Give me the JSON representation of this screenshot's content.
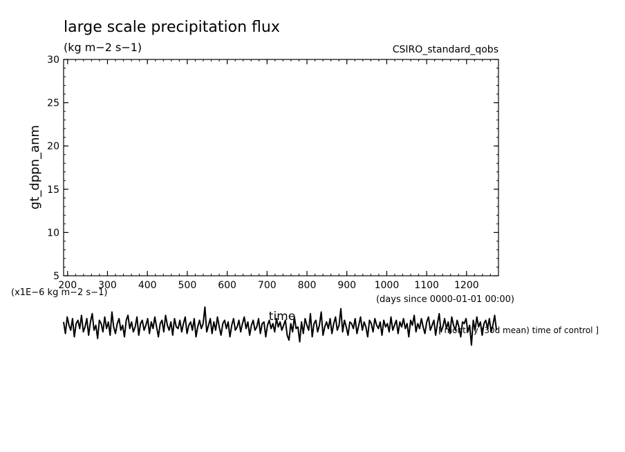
{
  "chart_data": {
    "type": "line",
    "title": "large scale precipitation flux",
    "units": "(kg m−2 s−1)",
    "source_label": "CSIRO_standard_qobs",
    "ylabel": "gt_dppn_anm",
    "xlabel": "time",
    "x_units": "(days since 0000-01-01 00:00)",
    "y_scale_label": "(x1E−6 kg m−2 s−1)",
    "extra_note": "[ monthly (30d mean) time of control ]",
    "xlim": [
      190,
      1280
    ],
    "ylim": [
      5,
      30
    ],
    "x_ticks": [
      "200",
      "300",
      "400",
      "500",
      "600",
      "700",
      "800",
      "900",
      "1000",
      "1100",
      "1200"
    ],
    "y_ticks": [
      "30",
      "25",
      "20",
      "15",
      "10",
      "5"
    ],
    "grid": false,
    "series": [
      {
        "x_start": 190,
        "x_end": 1275,
        "values": [
          0.3,
          -0.4,
          0.6,
          0.1,
          -0.2,
          0.5,
          -0.6,
          0.2,
          0.4,
          -0.1,
          0.7,
          -0.3,
          0.0,
          0.5,
          -0.5,
          0.3,
          0.8,
          -0.2,
          0.1,
          -0.7,
          0.4,
          0.2,
          -0.3,
          0.6,
          -0.1,
          0.3,
          -0.5,
          0.9,
          0.0,
          -0.4,
          0.2,
          0.5,
          -0.2,
          0.1,
          -0.6,
          0.4,
          0.7,
          -0.1,
          0.3,
          -0.3,
          0.0,
          0.6,
          -0.5,
          0.2,
          0.4,
          -0.2,
          0.1,
          0.5,
          -0.4,
          0.3,
          -0.1,
          0.6,
          0.0,
          -0.6,
          0.2,
          0.4,
          -0.3,
          0.7,
          0.1,
          -0.2,
          0.3,
          -0.5,
          0.5,
          0.0,
          -0.1,
          0.4,
          -0.3,
          0.2,
          0.6,
          -0.4,
          0.1,
          0.3,
          -0.2,
          0.5,
          -0.6,
          0.0,
          0.4,
          -0.1,
          0.2,
          1.2,
          -0.3,
          0.1,
          0.5,
          -0.4,
          0.3,
          -0.2,
          0.6,
          0.0,
          -0.5,
          0.2,
          0.4,
          -0.1,
          0.3,
          -0.6,
          0.1,
          0.5,
          -0.2,
          0.0,
          0.4,
          -0.3,
          0.2,
          0.6,
          -0.1,
          0.3,
          -0.5,
          0.1,
          0.4,
          -0.2,
          0.0,
          0.5,
          -0.4,
          0.2,
          0.3,
          -0.6,
          0.1,
          0.4,
          -0.1,
          0.2,
          -0.3,
          0.5,
          0.0,
          0.3,
          -0.2,
          0.1,
          0.4,
          -0.5,
          -0.8,
          0.2,
          -0.3,
          0.6,
          -0.1,
          0.0,
          -0.9,
          0.3,
          -0.4,
          0.5,
          0.1,
          -0.2,
          0.8,
          -0.6,
          0.2,
          0.4,
          -0.3,
          0.1,
          0.9,
          -0.5,
          0.0,
          0.3,
          -0.1,
          0.5,
          -0.4,
          0.2,
          0.6,
          -0.2,
          0.1,
          1.1,
          -0.3,
          0.4,
          0.0,
          -0.5,
          0.3,
          0.2,
          -0.1,
          0.5,
          -0.4,
          0.1,
          0.6,
          -0.2,
          0.3,
          0.0,
          -0.6,
          0.4,
          0.2,
          -0.3,
          0.5,
          0.1,
          -0.1,
          0.3,
          -0.5,
          0.4,
          0.0,
          0.2,
          -0.3,
          0.6,
          -0.2,
          0.1,
          0.4,
          -0.4,
          0.3,
          0.0,
          0.5,
          -0.1,
          0.2,
          -0.6,
          0.4,
          0.1,
          0.7,
          -0.3,
          0.2,
          -0.1,
          0.5,
          0.0,
          -0.4,
          0.3,
          0.6,
          -0.2,
          0.1,
          0.4,
          -0.5,
          0.2,
          0.8,
          -0.3,
          0.0,
          0.5,
          -0.1,
          0.3,
          -0.4,
          0.6,
          0.1,
          -0.2,
          0.4,
          0.0,
          -0.6,
          0.3,
          0.2,
          0.5,
          -0.3,
          0.1,
          -1.1,
          0.4,
          -0.2,
          0.6,
          0.0,
          0.3,
          -0.5,
          0.2,
          0.4,
          -0.1,
          0.5,
          -0.3,
          0.1,
          0.7,
          -0.2
        ]
      }
    ]
  }
}
